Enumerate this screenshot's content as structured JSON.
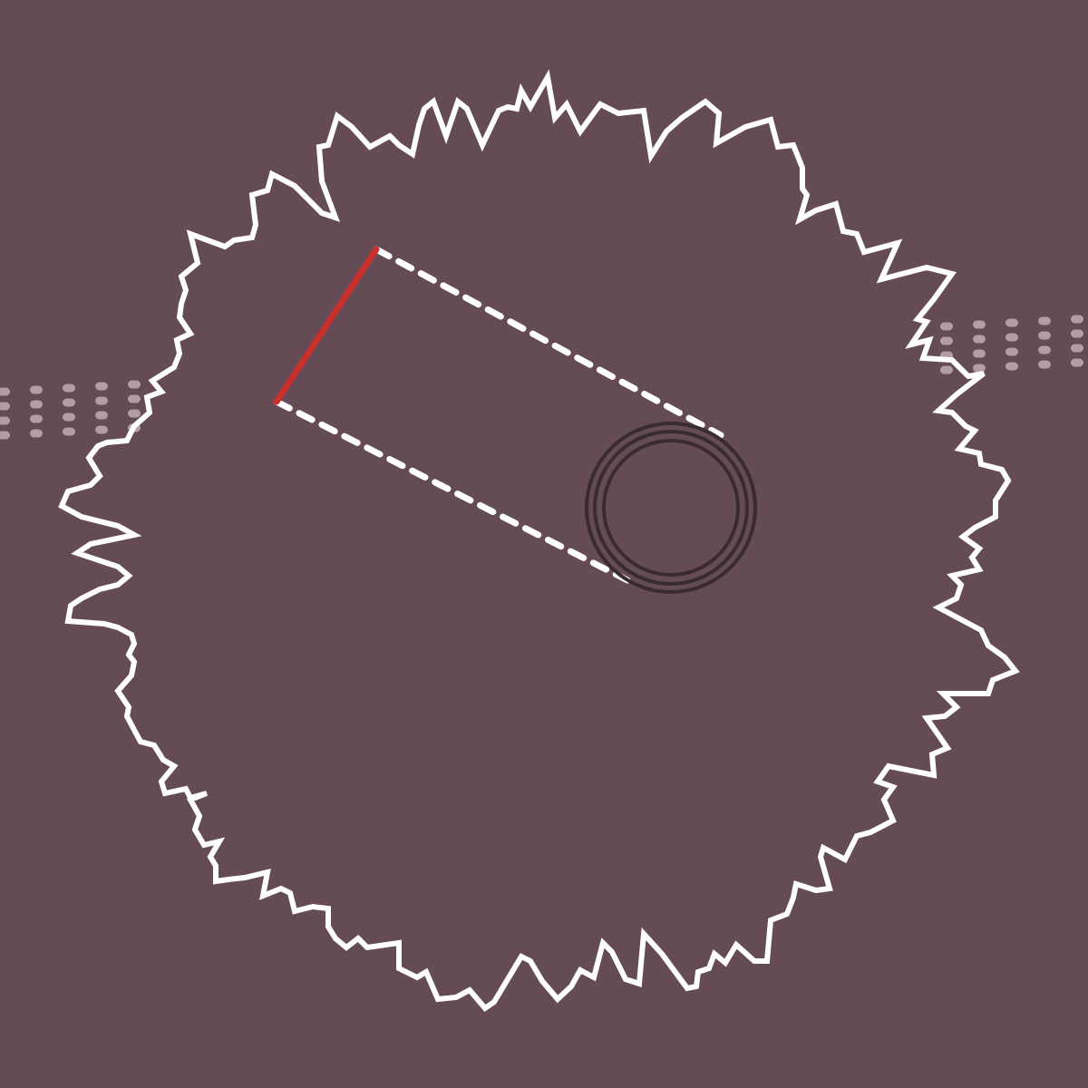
{
  "scene": {
    "background": "#644b56",
    "boundary": {
      "icon": "jagged-boundary-icon",
      "color": "#ffffff"
    },
    "paddle": {
      "icon": "red-paddle-icon",
      "color": "#c9302c"
    },
    "aim_lines": {
      "icon": "dashed-trajectory-icon",
      "color": "#ffffff"
    },
    "target": {
      "icon": "concentric-ring-target-icon",
      "color": "#3a2a32",
      "rings": 3
    },
    "left_dot_field": {
      "icon": "dot-grid-icon",
      "color": "#bfaab4"
    },
    "right_dot_field": {
      "icon": "dot-grid-icon",
      "color": "#bfaab4"
    }
  }
}
